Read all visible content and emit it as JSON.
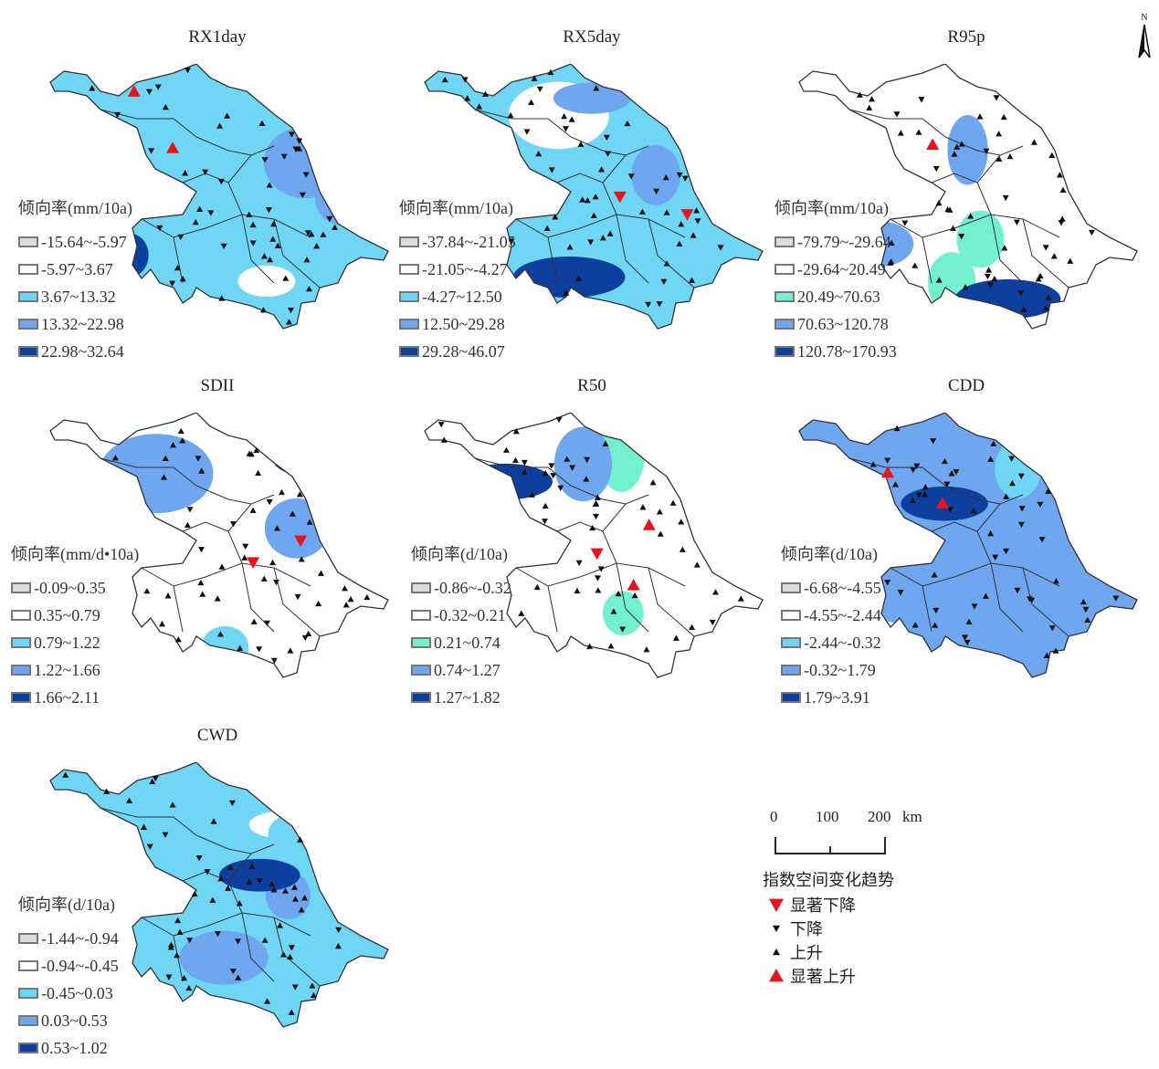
{
  "panels": [
    {
      "title": "RX1day",
      "unit_label": "倾向率(mm/10a)",
      "classes": [
        "-15.64~-5.97",
        "-5.97~3.67",
        "3.67~13.32",
        "13.32~22.98",
        "22.98~32.64"
      ],
      "class_colors": [
        "#dcdcdc",
        "#ffffff",
        "#6fd6f6",
        "#6fa6f0",
        "#0d3f9e"
      ],
      "dominant_class": 2
    },
    {
      "title": "RX5day",
      "unit_label": "倾向率(mm/10a)",
      "classes": [
        "-37.84~-21.05",
        "-21.05~-4.27",
        "-4.27~12.50",
        "12.50~29.28",
        "29.28~46.07"
      ],
      "class_colors": [
        "#dcdcdc",
        "#ffffff",
        "#6fd6f6",
        "#6fa6f0",
        "#0d3f9e"
      ],
      "dominant_class": 2
    },
    {
      "title": "R95p",
      "unit_label": "倾向率(mm/10a)",
      "classes": [
        "-79.79~-29.64",
        "-29.64~20.49",
        "20.49~70.63",
        "70.63~120.78",
        "120.78~170.93"
      ],
      "class_colors": [
        "#dcdcdc",
        "#ffffff",
        "#72f0d0",
        "#6fa6f0",
        "#0d3f9e"
      ],
      "dominant_class": 1
    },
    {
      "title": "SDII",
      "unit_label": "倾向率(mm/d•10a)",
      "classes": [
        "-0.09~0.35",
        "0.35~0.79",
        "0.79~1.22",
        "1.22~1.66",
        "1.66~2.11"
      ],
      "class_colors": [
        "#dcdcdc",
        "#ffffff",
        "#6fd6f6",
        "#6fa6f0",
        "#0d3f9e"
      ],
      "dominant_class": 1
    },
    {
      "title": "R50",
      "unit_label": "倾向率(d/10a)",
      "classes": [
        "-0.86~-0.32",
        "-0.32~0.21",
        "0.21~0.74",
        "0.74~1.27",
        "1.27~1.82"
      ],
      "class_colors": [
        "#dcdcdc",
        "#ffffff",
        "#72f0d0",
        "#6fa6f0",
        "#0d3f9e"
      ],
      "dominant_class": 1
    },
    {
      "title": "CDD",
      "unit_label": "倾向率(d/10a)",
      "classes": [
        "-6.68~-4.55",
        "-4.55~-2.44",
        "-2.44~-0.32",
        "-0.32~1.79",
        "1.79~3.91"
      ],
      "class_colors": [
        "#dcdcdc",
        "#ffffff",
        "#6fd6f6",
        "#6fa6f0",
        "#0d3f9e"
      ],
      "dominant_class": 3
    },
    {
      "title": "CWD",
      "unit_label": "倾向率(d/10a)",
      "classes": [
        "-1.44~-0.94",
        "-0.94~-0.45",
        "-0.45~0.03",
        "0.03~0.53",
        "0.53~1.02"
      ],
      "class_colors": [
        "#dcdcdc",
        "#ffffff",
        "#6fd6f6",
        "#6fa6f0",
        "#0d3f9e"
      ],
      "dominant_class": 2
    }
  ],
  "scale_bar": {
    "ticks": [
      "0",
      "100",
      "200"
    ],
    "unit": "km"
  },
  "north_label": "N",
  "trend_legend": {
    "title": "指数空间变化趋势",
    "items": [
      {
        "label": "显著下降",
        "symbol": "down-triangle",
        "color": "#e8141c"
      },
      {
        "label": "下降",
        "symbol": "down-triangle",
        "color": "#111111"
      },
      {
        "label": "上升",
        "symbol": "up-triangle",
        "color": "#111111"
      },
      {
        "label": "显著上升",
        "symbol": "up-triangle",
        "color": "#e8141c"
      }
    ]
  }
}
